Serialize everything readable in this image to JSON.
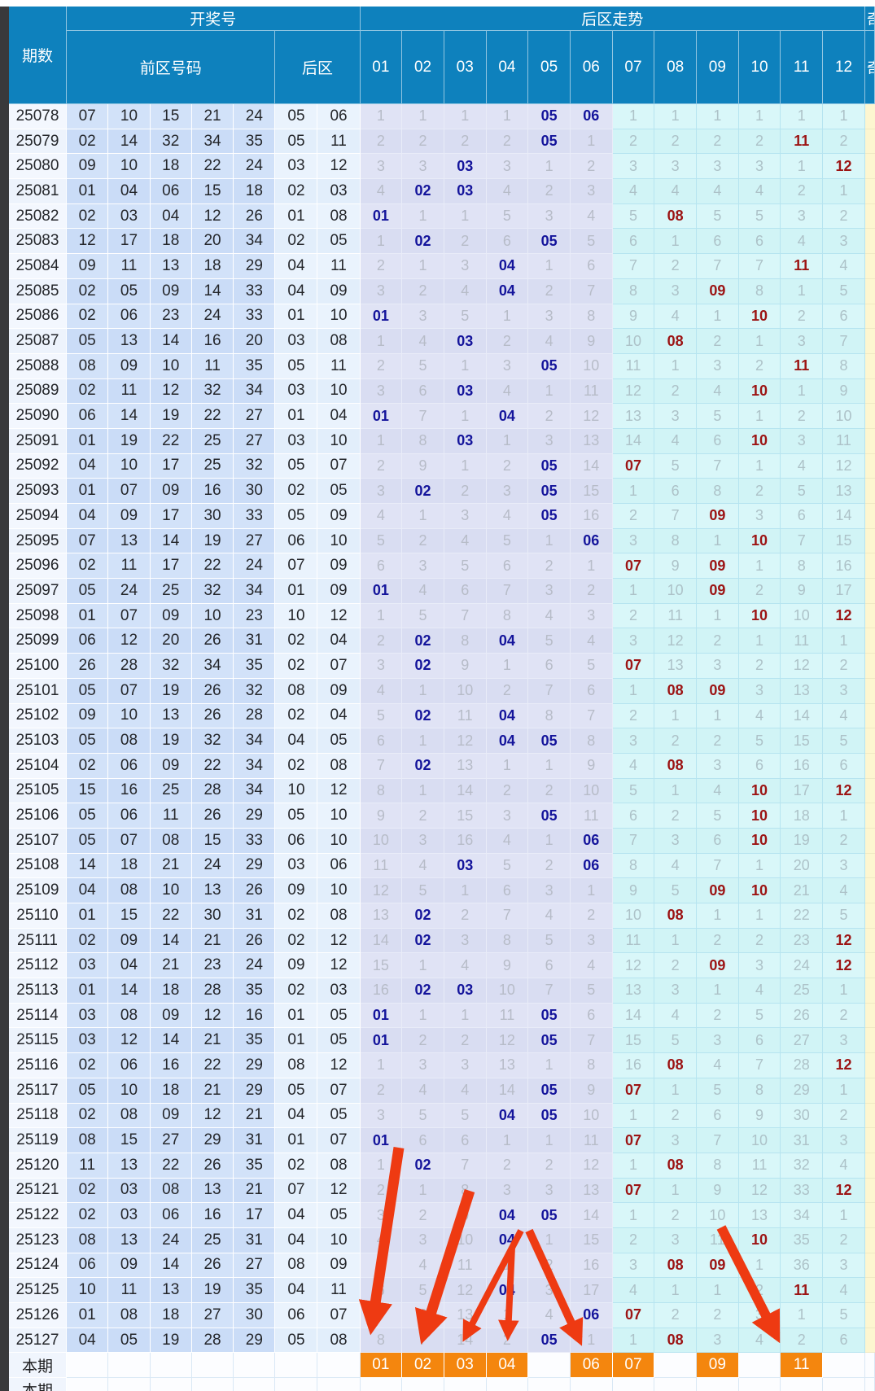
{
  "header": {
    "period_label": "期数",
    "draw_group_label": "开奖号",
    "front_label": "前区号码",
    "back_label": "后区",
    "trend_group_label": "后区走势",
    "trend_cols": [
      "01",
      "02",
      "03",
      "04",
      "05",
      "06",
      "07",
      "08",
      "09",
      "10",
      "11",
      "12"
    ],
    "partial_label": "奇"
  },
  "colors": {
    "header_blue": "#0e81bd",
    "hit_front_zone": "#14149b",
    "hit_back_zone": "#9c1414",
    "highlight_orange": "#f4860e",
    "arrow_red": "#ee3a12"
  },
  "rows": [
    {
      "period": "25078",
      "front": [
        "07",
        "10",
        "15",
        "21",
        "24"
      ],
      "back": [
        "05",
        "06"
      ],
      "trend": [
        1,
        1,
        1,
        1,
        "05",
        "06",
        1,
        1,
        1,
        1,
        1,
        1
      ]
    },
    {
      "period": "25079",
      "front": [
        "02",
        "14",
        "32",
        "34",
        "35"
      ],
      "back": [
        "05",
        "11"
      ],
      "trend": [
        2,
        2,
        2,
        2,
        "05",
        1,
        2,
        2,
        2,
        2,
        "11",
        2
      ]
    },
    {
      "period": "25080",
      "front": [
        "09",
        "10",
        "18",
        "22",
        "24"
      ],
      "back": [
        "03",
        "12"
      ],
      "trend": [
        3,
        3,
        "03",
        3,
        1,
        2,
        3,
        3,
        3,
        3,
        1,
        "12"
      ]
    },
    {
      "period": "25081",
      "front": [
        "01",
        "04",
        "06",
        "15",
        "18"
      ],
      "back": [
        "02",
        "03"
      ],
      "trend": [
        4,
        "02",
        "03",
        4,
        2,
        3,
        4,
        4,
        4,
        4,
        2,
        1
      ]
    },
    {
      "period": "25082",
      "front": [
        "02",
        "03",
        "04",
        "12",
        "26"
      ],
      "back": [
        "01",
        "08"
      ],
      "trend": [
        "01",
        1,
        1,
        5,
        3,
        4,
        5,
        "08",
        5,
        5,
        3,
        2
      ]
    },
    {
      "period": "25083",
      "front": [
        "12",
        "17",
        "18",
        "20",
        "34"
      ],
      "back": [
        "02",
        "05"
      ],
      "trend": [
        1,
        "02",
        2,
        6,
        "05",
        5,
        6,
        1,
        6,
        6,
        4,
        3
      ]
    },
    {
      "period": "25084",
      "front": [
        "09",
        "11",
        "13",
        "18",
        "29"
      ],
      "back": [
        "04",
        "11"
      ],
      "trend": [
        2,
        1,
        3,
        "04",
        1,
        6,
        7,
        2,
        7,
        7,
        "11",
        4
      ]
    },
    {
      "period": "25085",
      "front": [
        "02",
        "05",
        "09",
        "14",
        "33"
      ],
      "back": [
        "04",
        "09"
      ],
      "trend": [
        3,
        2,
        4,
        "04",
        2,
        7,
        8,
        3,
        "09",
        8,
        1,
        5
      ]
    },
    {
      "period": "25086",
      "front": [
        "02",
        "06",
        "23",
        "24",
        "33"
      ],
      "back": [
        "01",
        "10"
      ],
      "trend": [
        "01",
        3,
        5,
        1,
        3,
        8,
        9,
        4,
        1,
        "10",
        2,
        6
      ]
    },
    {
      "period": "25087",
      "front": [
        "05",
        "13",
        "14",
        "16",
        "20"
      ],
      "back": [
        "03",
        "08"
      ],
      "trend": [
        1,
        4,
        "03",
        2,
        4,
        9,
        10,
        "08",
        2,
        1,
        3,
        7
      ]
    },
    {
      "period": "25088",
      "front": [
        "08",
        "09",
        "10",
        "11",
        "35"
      ],
      "back": [
        "05",
        "11"
      ],
      "trend": [
        2,
        5,
        1,
        3,
        "05",
        10,
        11,
        1,
        3,
        2,
        "11",
        8
      ]
    },
    {
      "period": "25089",
      "front": [
        "02",
        "11",
        "12",
        "32",
        "34"
      ],
      "back": [
        "03",
        "10"
      ],
      "trend": [
        3,
        6,
        "03",
        4,
        1,
        11,
        12,
        2,
        4,
        "10",
        1,
        9
      ]
    },
    {
      "period": "25090",
      "front": [
        "06",
        "14",
        "19",
        "22",
        "27"
      ],
      "back": [
        "01",
        "04"
      ],
      "trend": [
        "01",
        7,
        1,
        "04",
        2,
        12,
        13,
        3,
        5,
        1,
        2,
        10
      ]
    },
    {
      "period": "25091",
      "front": [
        "01",
        "19",
        "22",
        "25",
        "27"
      ],
      "back": [
        "03",
        "10"
      ],
      "trend": [
        1,
        8,
        "03",
        1,
        3,
        13,
        14,
        4,
        6,
        "10",
        3,
        11
      ]
    },
    {
      "period": "25092",
      "front": [
        "04",
        "10",
        "17",
        "25",
        "32"
      ],
      "back": [
        "05",
        "07"
      ],
      "trend": [
        2,
        9,
        1,
        2,
        "05",
        14,
        "07",
        5,
        7,
        1,
        4,
        12
      ]
    },
    {
      "period": "25093",
      "front": [
        "01",
        "07",
        "09",
        "16",
        "30"
      ],
      "back": [
        "02",
        "05"
      ],
      "trend": [
        3,
        "02",
        2,
        3,
        "05",
        15,
        1,
        6,
        8,
        2,
        5,
        13
      ]
    },
    {
      "period": "25094",
      "front": [
        "04",
        "09",
        "17",
        "30",
        "33"
      ],
      "back": [
        "05",
        "09"
      ],
      "trend": [
        4,
        1,
        3,
        4,
        "05",
        16,
        2,
        7,
        "09",
        3,
        6,
        14
      ]
    },
    {
      "period": "25095",
      "front": [
        "07",
        "13",
        "14",
        "19",
        "27"
      ],
      "back": [
        "06",
        "10"
      ],
      "trend": [
        5,
        2,
        4,
        5,
        1,
        "06",
        3,
        8,
        1,
        "10",
        7,
        15
      ]
    },
    {
      "period": "25096",
      "front": [
        "02",
        "11",
        "17",
        "22",
        "24"
      ],
      "back": [
        "07",
        "09"
      ],
      "trend": [
        6,
        3,
        5,
        6,
        2,
        1,
        "07",
        9,
        "09",
        1,
        8,
        16
      ]
    },
    {
      "period": "25097",
      "front": [
        "05",
        "24",
        "25",
        "32",
        "34"
      ],
      "back": [
        "01",
        "09"
      ],
      "trend": [
        "01",
        4,
        6,
        7,
        3,
        2,
        1,
        10,
        "09",
        2,
        9,
        17
      ]
    },
    {
      "period": "25098",
      "front": [
        "01",
        "07",
        "09",
        "10",
        "23"
      ],
      "back": [
        "10",
        "12"
      ],
      "trend": [
        1,
        5,
        7,
        8,
        4,
        3,
        2,
        11,
        1,
        "10",
        10,
        "12"
      ]
    },
    {
      "period": "25099",
      "front": [
        "06",
        "12",
        "20",
        "26",
        "31"
      ],
      "back": [
        "02",
        "04"
      ],
      "trend": [
        2,
        "02",
        8,
        "04",
        5,
        4,
        3,
        12,
        2,
        1,
        11,
        1
      ]
    },
    {
      "period": "25100",
      "front": [
        "26",
        "28",
        "32",
        "34",
        "35"
      ],
      "back": [
        "02",
        "07"
      ],
      "trend": [
        3,
        "02",
        9,
        1,
        6,
        5,
        "07",
        13,
        3,
        2,
        12,
        2
      ]
    },
    {
      "period": "25101",
      "front": [
        "05",
        "07",
        "19",
        "26",
        "32"
      ],
      "back": [
        "08",
        "09"
      ],
      "trend": [
        4,
        1,
        10,
        2,
        7,
        6,
        1,
        "08",
        "09",
        3,
        13,
        3
      ]
    },
    {
      "period": "25102",
      "front": [
        "09",
        "10",
        "13",
        "26",
        "28"
      ],
      "back": [
        "02",
        "04"
      ],
      "trend": [
        5,
        "02",
        11,
        "04",
        8,
        7,
        2,
        1,
        1,
        4,
        14,
        4
      ]
    },
    {
      "period": "25103",
      "front": [
        "05",
        "08",
        "19",
        "32",
        "34"
      ],
      "back": [
        "04",
        "05"
      ],
      "trend": [
        6,
        1,
        12,
        "04",
        "05",
        8,
        3,
        2,
        2,
        5,
        15,
        5
      ]
    },
    {
      "period": "25104",
      "front": [
        "02",
        "06",
        "09",
        "22",
        "34"
      ],
      "back": [
        "02",
        "08"
      ],
      "trend": [
        7,
        "02",
        13,
        1,
        1,
        9,
        4,
        "08",
        3,
        6,
        16,
        6
      ]
    },
    {
      "period": "25105",
      "front": [
        "15",
        "16",
        "25",
        "28",
        "34"
      ],
      "back": [
        "10",
        "12"
      ],
      "trend": [
        8,
        1,
        14,
        2,
        2,
        10,
        5,
        1,
        4,
        "10",
        17,
        "12"
      ]
    },
    {
      "period": "25106",
      "front": [
        "05",
        "06",
        "11",
        "26",
        "29"
      ],
      "back": [
        "05",
        "10"
      ],
      "trend": [
        9,
        2,
        15,
        3,
        "05",
        11,
        6,
        2,
        5,
        "10",
        18,
        1
      ]
    },
    {
      "period": "25107",
      "front": [
        "05",
        "07",
        "08",
        "15",
        "33"
      ],
      "back": [
        "06",
        "10"
      ],
      "trend": [
        10,
        3,
        16,
        4,
        1,
        "06",
        7,
        3,
        6,
        "10",
        19,
        2
      ]
    },
    {
      "period": "25108",
      "front": [
        "14",
        "18",
        "21",
        "24",
        "29"
      ],
      "back": [
        "03",
        "06"
      ],
      "trend": [
        11,
        4,
        "03",
        5,
        2,
        "06",
        8,
        4,
        7,
        1,
        20,
        3
      ]
    },
    {
      "period": "25109",
      "front": [
        "04",
        "08",
        "10",
        "13",
        "26"
      ],
      "back": [
        "09",
        "10"
      ],
      "trend": [
        12,
        5,
        1,
        6,
        3,
        1,
        9,
        5,
        "09",
        "10",
        21,
        4
      ]
    },
    {
      "period": "25110",
      "front": [
        "01",
        "15",
        "22",
        "30",
        "31"
      ],
      "back": [
        "02",
        "08"
      ],
      "trend": [
        13,
        "02",
        2,
        7,
        4,
        2,
        10,
        "08",
        1,
        1,
        22,
        5
      ]
    },
    {
      "period": "25111",
      "front": [
        "02",
        "09",
        "14",
        "21",
        "26"
      ],
      "back": [
        "02",
        "12"
      ],
      "trend": [
        14,
        "02",
        3,
        8,
        5,
        3,
        11,
        1,
        2,
        2,
        23,
        "12"
      ]
    },
    {
      "period": "25112",
      "front": [
        "03",
        "04",
        "21",
        "23",
        "24"
      ],
      "back": [
        "09",
        "12"
      ],
      "trend": [
        15,
        1,
        4,
        9,
        6,
        4,
        12,
        2,
        "09",
        3,
        24,
        "12"
      ]
    },
    {
      "period": "25113",
      "front": [
        "01",
        "14",
        "18",
        "28",
        "35"
      ],
      "back": [
        "02",
        "03"
      ],
      "trend": [
        16,
        "02",
        "03",
        10,
        7,
        5,
        13,
        3,
        1,
        4,
        25,
        1
      ]
    },
    {
      "period": "25114",
      "front": [
        "03",
        "08",
        "09",
        "12",
        "16"
      ],
      "back": [
        "01",
        "05"
      ],
      "trend": [
        "01",
        1,
        1,
        11,
        "05",
        6,
        14,
        4,
        2,
        5,
        26,
        2
      ]
    },
    {
      "period": "25115",
      "front": [
        "03",
        "12",
        "14",
        "21",
        "35"
      ],
      "back": [
        "01",
        "05"
      ],
      "trend": [
        "01",
        2,
        2,
        12,
        "05",
        7,
        15,
        5,
        3,
        6,
        27,
        3
      ]
    },
    {
      "period": "25116",
      "front": [
        "02",
        "06",
        "16",
        "22",
        "29"
      ],
      "back": [
        "08",
        "12"
      ],
      "trend": [
        1,
        3,
        3,
        13,
        1,
        8,
        16,
        "08",
        4,
        7,
        28,
        "12"
      ]
    },
    {
      "period": "25117",
      "front": [
        "05",
        "10",
        "18",
        "21",
        "29"
      ],
      "back": [
        "05",
        "07"
      ],
      "trend": [
        2,
        4,
        4,
        14,
        "05",
        9,
        "07",
        1,
        5,
        8,
        29,
        1
      ]
    },
    {
      "period": "25118",
      "front": [
        "02",
        "08",
        "09",
        "12",
        "21"
      ],
      "back": [
        "04",
        "05"
      ],
      "trend": [
        3,
        5,
        5,
        "04",
        "05",
        10,
        1,
        2,
        6,
        9,
        30,
        2
      ]
    },
    {
      "period": "25119",
      "front": [
        "08",
        "15",
        "27",
        "29",
        "31"
      ],
      "back": [
        "01",
        "07"
      ],
      "trend": [
        "01",
        6,
        6,
        1,
        1,
        11,
        "07",
        3,
        7,
        10,
        31,
        3
      ]
    },
    {
      "period": "25120",
      "front": [
        "11",
        "13",
        "22",
        "26",
        "35"
      ],
      "back": [
        "02",
        "08"
      ],
      "trend": [
        1,
        "02",
        7,
        2,
        2,
        12,
        1,
        "08",
        8,
        11,
        32,
        4
      ]
    },
    {
      "period": "25121",
      "front": [
        "02",
        "03",
        "08",
        "13",
        "21"
      ],
      "back": [
        "07",
        "12"
      ],
      "trend": [
        2,
        1,
        8,
        3,
        3,
        13,
        "07",
        1,
        9,
        12,
        33,
        "12"
      ]
    },
    {
      "period": "25122",
      "front": [
        "02",
        "03",
        "06",
        "16",
        "17"
      ],
      "back": [
        "04",
        "05"
      ],
      "trend": [
        3,
        2,
        9,
        "04",
        "05",
        14,
        1,
        2,
        10,
        13,
        34,
        1
      ]
    },
    {
      "period": "25123",
      "front": [
        "08",
        "13",
        "24",
        "25",
        "31"
      ],
      "back": [
        "04",
        "10"
      ],
      "trend": [
        4,
        3,
        10,
        "04",
        1,
        15,
        2,
        3,
        11,
        "10",
        35,
        2
      ]
    },
    {
      "period": "25124",
      "front": [
        "06",
        "09",
        "14",
        "26",
        "27"
      ],
      "back": [
        "08",
        "09"
      ],
      "trend": [
        5,
        4,
        11,
        1,
        2,
        16,
        3,
        "08",
        "09",
        1,
        36,
        3
      ]
    },
    {
      "period": "25125",
      "front": [
        "10",
        "11",
        "13",
        "19",
        "35"
      ],
      "back": [
        "04",
        "11"
      ],
      "trend": [
        6,
        5,
        12,
        "04",
        3,
        17,
        4,
        1,
        1,
        2,
        "11",
        4
      ]
    },
    {
      "period": "25126",
      "front": [
        "01",
        "08",
        "18",
        "27",
        "30"
      ],
      "back": [
        "06",
        "07"
      ],
      "trend": [
        7,
        6,
        13,
        1,
        4,
        "06",
        "07",
        2,
        2,
        3,
        1,
        5
      ]
    },
    {
      "period": "25127",
      "front": [
        "04",
        "05",
        "19",
        "28",
        "29"
      ],
      "back": [
        "05",
        "08"
      ],
      "trend": [
        8,
        7,
        14,
        2,
        "05",
        1,
        1,
        "08",
        3,
        4,
        2,
        6
      ]
    }
  ],
  "current_row": {
    "label": "本期",
    "cells": [
      "01",
      "02",
      "03",
      "04",
      "",
      "06",
      "07",
      "",
      "09",
      "",
      "11",
      ""
    ]
  },
  "next_partial_row_label": "本期"
}
